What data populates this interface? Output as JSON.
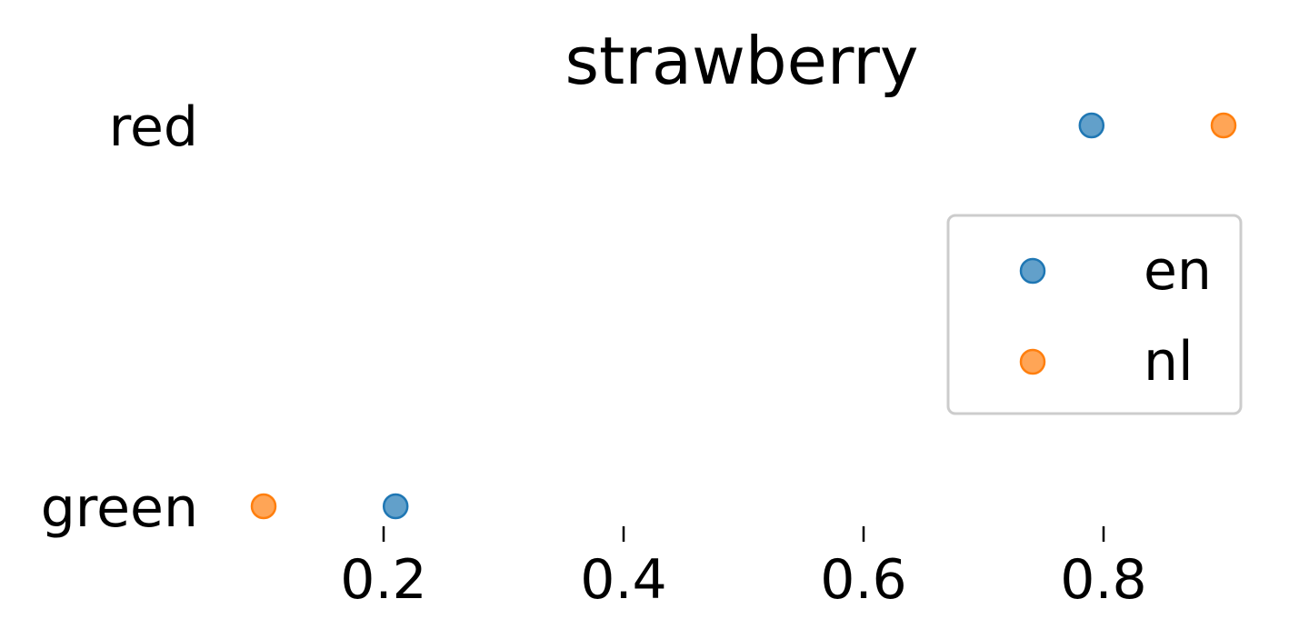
{
  "chart_data": {
    "type": "scatter",
    "title": "strawberry",
    "xlabel": "",
    "ylabel": "",
    "categories": [
      "red",
      "green"
    ],
    "x_ticks": [
      "0.2",
      "0.4",
      "0.6",
      "0.8"
    ],
    "xlim": [
      0.06,
      0.93
    ],
    "grid": false,
    "legend_position": "center-right",
    "series": [
      {
        "name": "en",
        "color": "#1f77b4",
        "values": [
          0.79,
          0.21
        ]
      },
      {
        "name": "nl",
        "color": "#ff7f0e",
        "values": [
          0.9,
          0.1
        ]
      }
    ]
  }
}
